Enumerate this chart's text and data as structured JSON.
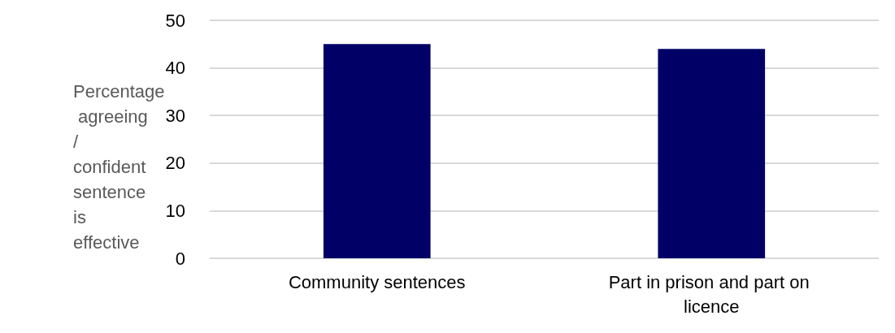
{
  "chart_data": {
    "type": "bar",
    "ylabel": "Percentage agreeing / confident sentence is effective",
    "categories": [
      "Community sentences",
      "Part in prison and part on licence"
    ],
    "values": [
      45,
      44
    ],
    "color": "#000066",
    "ylim": [
      0,
      50
    ],
    "yticks": [
      0,
      10,
      20,
      30,
      40,
      50
    ],
    "grid": "y"
  }
}
